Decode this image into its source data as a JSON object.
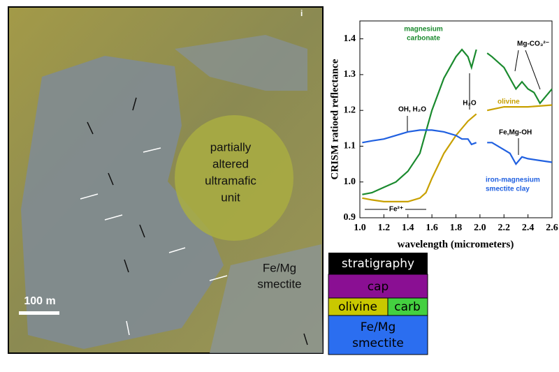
{
  "image": {
    "panel_label": "i",
    "unit_label": [
      "partially",
      "altered",
      "ultramafic",
      "unit"
    ],
    "smectite_label": [
      "Fe/Mg",
      "smectite"
    ],
    "scale_bar": "100 m"
  },
  "chart_data": {
    "type": "line",
    "ylabel": "CRISM ratioed reflectance",
    "xlabel": "wavelength (micrometers)",
    "xlim": [
      1.0,
      2.6
    ],
    "xticks": [
      {
        "value": 1.0,
        "label": "1.0"
      },
      1.2,
      1.4,
      1.6,
      1.8,
      {
        "value": 2.0,
        "label": "2.0"
      },
      2.2,
      2.4,
      2.6
    ],
    "ylim": [
      0.9,
      1.45
    ],
    "yticks": [
      0.9,
      {
        "value": 1.0,
        "label": "1.0"
      },
      1.1,
      1.2,
      1.3,
      1.4
    ],
    "series": [
      {
        "color": "#1a8a2e",
        "x": [
          1.02,
          1.1,
          1.2,
          1.3,
          1.4,
          1.5,
          1.6,
          1.7,
          1.8,
          1.85,
          1.9,
          1.93,
          1.97,
          2.0,
          2.06,
          2.1,
          2.2,
          2.25,
          2.3,
          2.35,
          2.4,
          2.45,
          2.5,
          2.55,
          2.6
        ],
        "values": [
          0.965,
          0.97,
          0.985,
          1.0,
          1.03,
          1.08,
          1.2,
          1.29,
          1.35,
          1.37,
          1.35,
          1.32,
          1.37,
          null,
          1.36,
          1.35,
          1.32,
          1.29,
          1.26,
          1.28,
          1.26,
          1.25,
          1.22,
          1.24,
          1.26
        ]
      },
      {
        "color": "#c8a000",
        "x": [
          1.02,
          1.1,
          1.2,
          1.3,
          1.4,
          1.5,
          1.55,
          1.6,
          1.7,
          1.8,
          1.9,
          1.97,
          2.0,
          2.06,
          2.2,
          2.4,
          2.6
        ],
        "values": [
          0.955,
          0.95,
          0.945,
          0.945,
          0.945,
          0.955,
          0.97,
          1.01,
          1.08,
          1.13,
          1.17,
          1.19,
          null,
          1.2,
          1.21,
          1.21,
          1.215
        ]
      },
      {
        "color": "#2060e0",
        "x": [
          1.02,
          1.1,
          1.2,
          1.3,
          1.4,
          1.5,
          1.6,
          1.7,
          1.8,
          1.85,
          1.9,
          1.93,
          1.97,
          2.0,
          2.06,
          2.1,
          2.2,
          2.25,
          2.3,
          2.35,
          2.4,
          2.5,
          2.6
        ],
        "values": [
          1.11,
          1.115,
          1.12,
          1.13,
          1.14,
          1.145,
          1.145,
          1.14,
          1.13,
          1.12,
          1.12,
          1.105,
          1.11,
          null,
          1.11,
          1.11,
          1.09,
          1.08,
          1.05,
          1.07,
          1.065,
          1.06,
          1.055
        ]
      }
    ],
    "annotations": [
      [
        "magnesium",
        "carbonate"
      ],
      [
        "olivine"
      ],
      [
        "OH, H₂O"
      ],
      [
        "H₂O"
      ],
      [
        "Mg-CO₃²⁻"
      ],
      [
        "Fe,Mg-OH"
      ],
      [
        "iron-magnesium",
        "smectite clay"
      ],
      [
        "Fe²⁺"
      ]
    ]
  },
  "stratigraphy": {
    "title": "stratigraphy",
    "units": [
      "cap",
      [
        "olivine",
        "carb"
      ],
      [
        "Fe/Mg",
        "smectite"
      ]
    ]
  }
}
